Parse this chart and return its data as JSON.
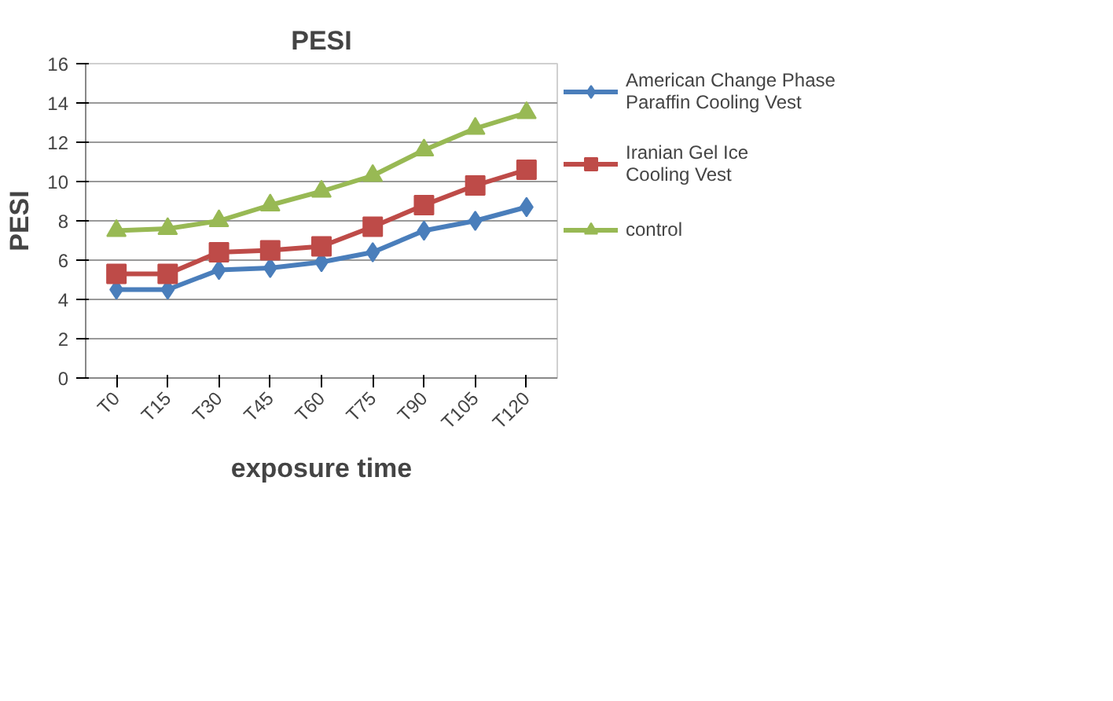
{
  "chart_data": {
    "type": "line",
    "title": "PESI",
    "xlabel": "exposure time",
    "ylabel": "PESI",
    "categories": [
      "T0",
      "T15",
      "T30",
      "T45",
      "T60",
      "T75",
      "T90",
      "T105",
      "T120"
    ],
    "series": [
      {
        "name": "American Change Phase Paraffin Cooling Vest",
        "color": "#4a7ebb",
        "marker": "diamond",
        "values": [
          4.5,
          4.5,
          5.5,
          5.6,
          5.9,
          6.4,
          7.5,
          8.0,
          8.7
        ]
      },
      {
        "name": "Iranian Gel Ice Cooling Vest",
        "color": "#be4b48",
        "marker": "square",
        "values": [
          5.3,
          5.3,
          6.4,
          6.5,
          6.7,
          7.7,
          8.8,
          9.8,
          10.6
        ]
      },
      {
        "name": "control",
        "color": "#98b954",
        "marker": "triangle",
        "values": [
          7.5,
          7.6,
          8.0,
          8.8,
          9.5,
          10.3,
          11.6,
          12.7,
          13.5
        ]
      }
    ],
    "ylim": [
      0,
      16
    ],
    "yticks": [
      0,
      2,
      4,
      6,
      8,
      10,
      12,
      14,
      16
    ],
    "grid": "y",
    "legend": "right"
  }
}
